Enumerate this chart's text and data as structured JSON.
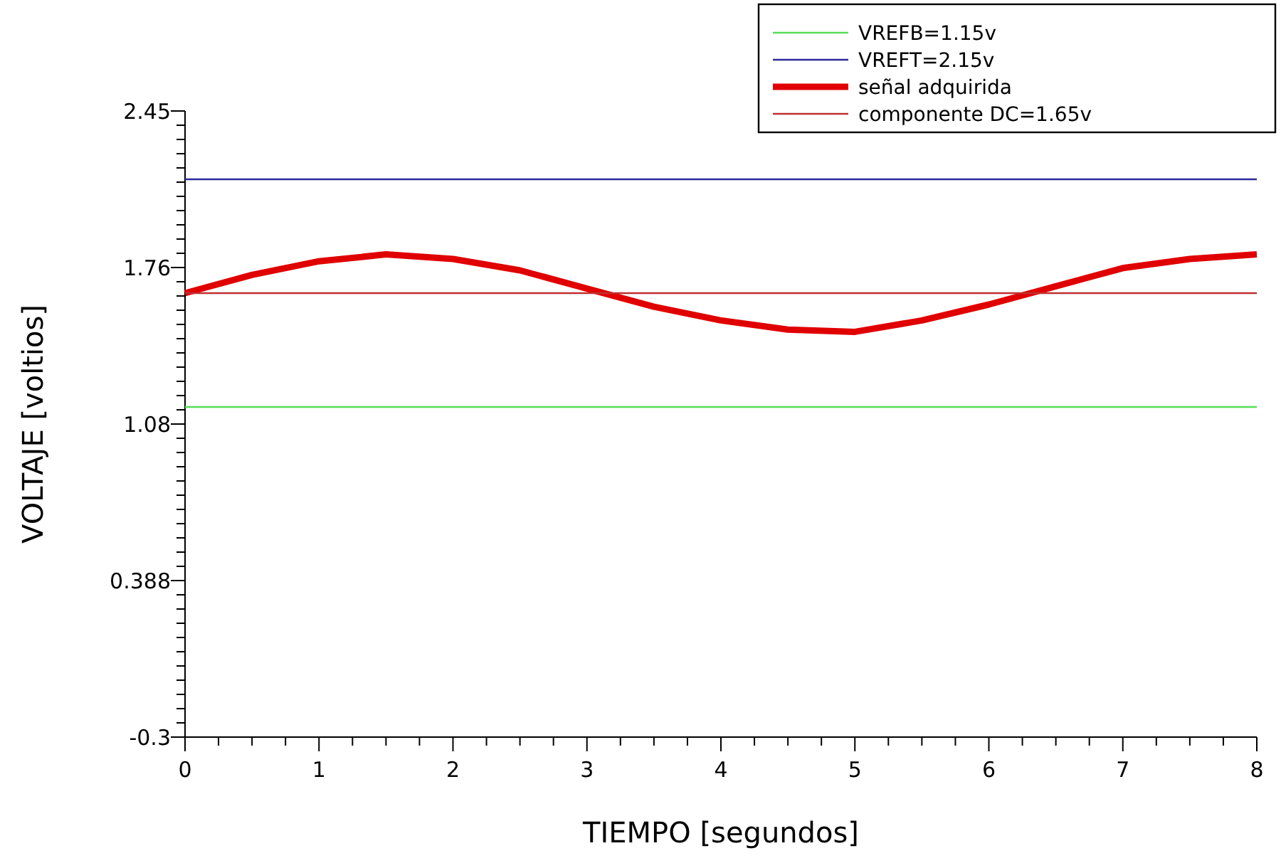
{
  "chart_data": {
    "type": "line",
    "xlabel": "TIEMPO [segundos]",
    "ylabel": "VOLTAJE [voltios]",
    "xlim": [
      0,
      8
    ],
    "ylim": [
      -0.3,
      2.45
    ],
    "xticks": [
      0,
      {
        "value": 0.25,
        "label": null
      },
      {
        "value": 0.5,
        "label": null
      },
      {
        "value": 0.75,
        "label": null
      },
      1,
      {
        "value": 1.25,
        "label": null
      },
      {
        "value": 1.5,
        "label": null
      },
      {
        "value": 1.75,
        "label": null
      },
      2,
      {
        "value": 2.25,
        "label": null
      },
      {
        "value": 2.5,
        "label": null
      },
      {
        "value": 2.75,
        "label": null
      },
      3,
      {
        "value": 3.25,
        "label": null
      },
      {
        "value": 3.5,
        "label": null
      },
      {
        "value": 3.75,
        "label": null
      },
      4,
      {
        "value": 4.25,
        "label": null
      },
      {
        "value": 4.5,
        "label": null
      },
      {
        "value": 4.75,
        "label": null
      },
      5,
      {
        "value": 5.25,
        "label": null
      },
      {
        "value": 5.5,
        "label": null
      },
      {
        "value": 5.75,
        "label": null
      },
      6,
      {
        "value": 6.25,
        "label": null
      },
      {
        "value": 6.5,
        "label": null
      },
      {
        "value": 6.75,
        "label": null
      },
      7,
      {
        "value": 7.25,
        "label": null
      },
      {
        "value": 7.5,
        "label": null
      },
      {
        "value": 7.75,
        "label": null
      },
      8
    ],
    "yticks": [
      -0.3,
      {
        "value": -0.2375,
        "label": null
      },
      {
        "value": -0.175,
        "label": null
      },
      {
        "value": -0.1125,
        "label": null
      },
      {
        "value": -0.05,
        "label": null
      },
      {
        "value": 0.0125,
        "label": null
      },
      {
        "value": 0.075,
        "label": null
      },
      {
        "value": 0.1375,
        "label": null
      },
      {
        "value": 0.2,
        "label": null
      },
      {
        "value": 0.2625,
        "label": null
      },
      {
        "value": 0.325,
        "label": null
      },
      {
        "value": 0.3875,
        "label": "0.388"
      },
      {
        "value": 0.45,
        "label": null
      },
      {
        "value": 0.5125,
        "label": null
      },
      {
        "value": 0.575,
        "label": null
      },
      {
        "value": 0.6375,
        "label": null
      },
      {
        "value": 0.7,
        "label": null
      },
      {
        "value": 0.7625,
        "label": null
      },
      {
        "value": 0.825,
        "label": null
      },
      {
        "value": 0.8875,
        "label": null
      },
      {
        "value": 0.95,
        "label": null
      },
      {
        "value": 1.0125,
        "label": null
      },
      {
        "value": 1.075,
        "label": "1.08"
      },
      {
        "value": 1.1375,
        "label": null
      },
      {
        "value": 1.2,
        "label": null
      },
      {
        "value": 1.2625,
        "label": null
      },
      {
        "value": 1.325,
        "label": null
      },
      {
        "value": 1.3875,
        "label": null
      },
      {
        "value": 1.45,
        "label": null
      },
      {
        "value": 1.5125,
        "label": null
      },
      {
        "value": 1.575,
        "label": null
      },
      {
        "value": 1.6375,
        "label": null
      },
      {
        "value": 1.7,
        "label": null
      },
      {
        "value": 1.7625,
        "label": "1.76"
      },
      {
        "value": 1.825,
        "label": null
      },
      {
        "value": 1.8875,
        "label": null
      },
      {
        "value": 1.95,
        "label": null
      },
      {
        "value": 2.0125,
        "label": null
      },
      {
        "value": 2.075,
        "label": null
      },
      {
        "value": 2.1375,
        "label": null
      },
      {
        "value": 2.2,
        "label": null
      },
      {
        "value": 2.2625,
        "label": null
      },
      {
        "value": 2.325,
        "label": null
      },
      {
        "value": 2.3875,
        "label": null
      },
      2.45
    ],
    "grid": false,
    "legend": "top right",
    "marker": "none",
    "line_style": "solid",
    "series": [
      {
        "name": "VREFB=1.15v",
        "color": "#55dd55",
        "x": [
          0,
          8
        ],
        "values": [
          1.15,
          1.15
        ]
      },
      {
        "name": "VREFT=2.15v",
        "color": "#2a2a9a",
        "x": [
          0,
          8
        ],
        "values": [
          2.15,
          2.15
        ]
      },
      {
        "name": "señal adquirida",
        "color": "#e00000",
        "x": [
          0,
          0.5,
          1,
          1.5,
          2,
          2.5,
          3,
          3.5,
          4,
          4.5,
          5,
          5.5,
          6,
          6.5,
          7,
          7.5,
          8
        ],
        "values": [
          1.65,
          1.73,
          1.79,
          1.82,
          1.8,
          1.75,
          1.67,
          1.59,
          1.53,
          1.49,
          1.48,
          1.53,
          1.6,
          1.68,
          1.76,
          1.8,
          1.82
        ]
      },
      {
        "name": "componente DC=1.65v",
        "color": "#c03030",
        "x": [
          0,
          8
        ],
        "values": [
          1.65,
          1.65
        ]
      }
    ]
  }
}
